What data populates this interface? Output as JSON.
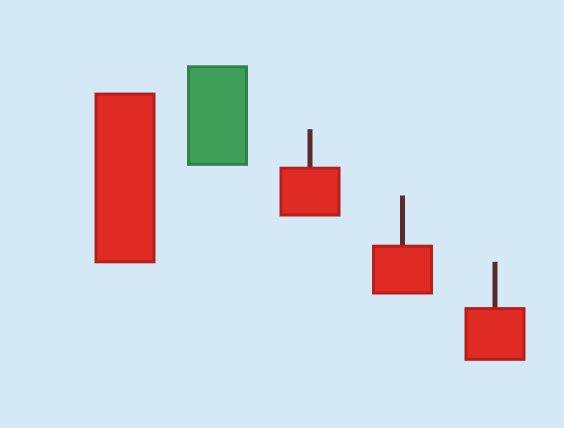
{
  "colors": {
    "background": "#d4e8f6",
    "bearish": "#e02a24",
    "bearish_border": "#b81e1c",
    "bullish": "#3f9e57",
    "bullish_border": "#2f8446",
    "wick": "#5a2b2a"
  },
  "chart_data": {
    "type": "candlestick",
    "title": "",
    "xlabel": "",
    "ylabel": "",
    "grid": false,
    "legend": "none",
    "ylim": [
      0,
      100
    ],
    "candles": [
      {
        "open": 81,
        "close": 38,
        "high": 81,
        "low": 38,
        "direction": "bearish"
      },
      {
        "open": 63,
        "close": 88,
        "high": 88,
        "low": 63,
        "direction": "bullish"
      },
      {
        "open": 62,
        "close": 50,
        "high": 72,
        "low": 50,
        "direction": "bearish"
      },
      {
        "open": 42,
        "close": 30,
        "high": 55,
        "low": 30,
        "direction": "bearish"
      },
      {
        "open": 26,
        "close": 13,
        "high": 38,
        "low": 13,
        "direction": "bearish"
      }
    ]
  }
}
